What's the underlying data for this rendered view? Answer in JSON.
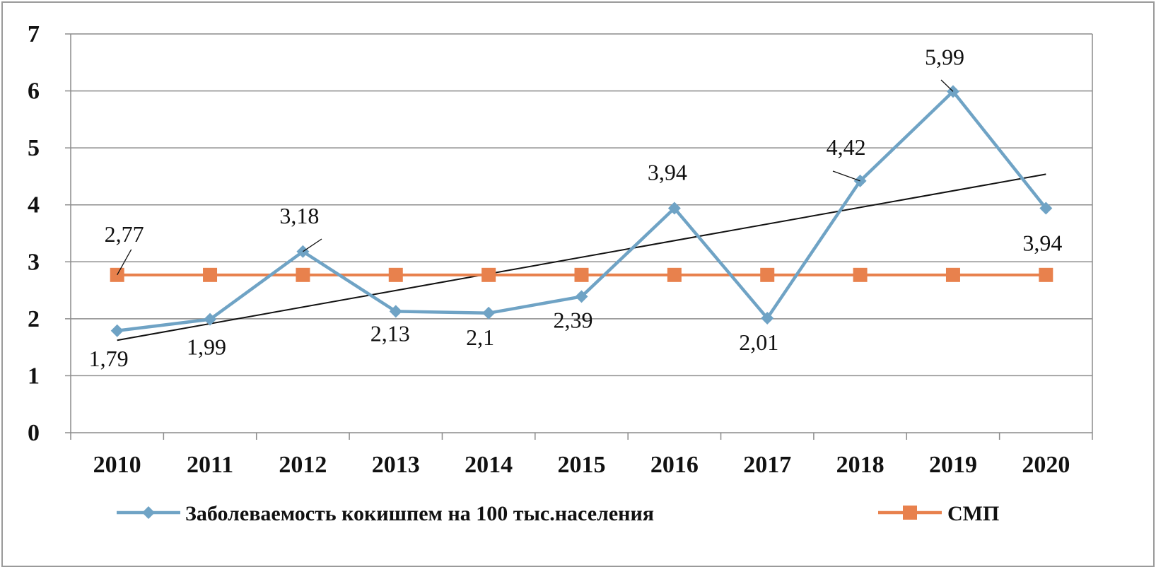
{
  "chart_data": {
    "type": "line",
    "categories": [
      "2010",
      "2011",
      "2012",
      "2013",
      "2014",
      "2015",
      "2016",
      "2017",
      "2018",
      "2019",
      "2020"
    ],
    "ylim": [
      0,
      7
    ],
    "yticks": [
      "0",
      "1",
      "2",
      "3",
      "4",
      "5",
      "6",
      "7"
    ],
    "grid": true,
    "legend_position": "bottom",
    "series": [
      {
        "name": "Заболеваемость кокишпем на 100 тыс.населения",
        "values": [
          1.79,
          1.99,
          3.18,
          2.13,
          2.1,
          2.39,
          3.94,
          2.01,
          4.42,
          5.99,
          3.94
        ],
        "labels": [
          "1,79",
          "1,99",
          "3,18",
          "2,13",
          "2,1",
          "2,39",
          "3,94",
          "2,01",
          "4,42",
          "5,99",
          "3,94"
        ],
        "color": "#6fa3c5",
        "marker": "diamond"
      },
      {
        "name": "СМП",
        "values": [
          2.77,
          2.77,
          2.77,
          2.77,
          2.77,
          2.77,
          2.77,
          2.77,
          2.77,
          2.77,
          2.77
        ],
        "labels": [
          "2,77"
        ],
        "color": "#e8814d",
        "marker": "square"
      }
    ],
    "trendline": {
      "series": "Заболеваемость кокишпем на 100 тыс.населения",
      "type": "linear",
      "color": "#111111"
    }
  }
}
